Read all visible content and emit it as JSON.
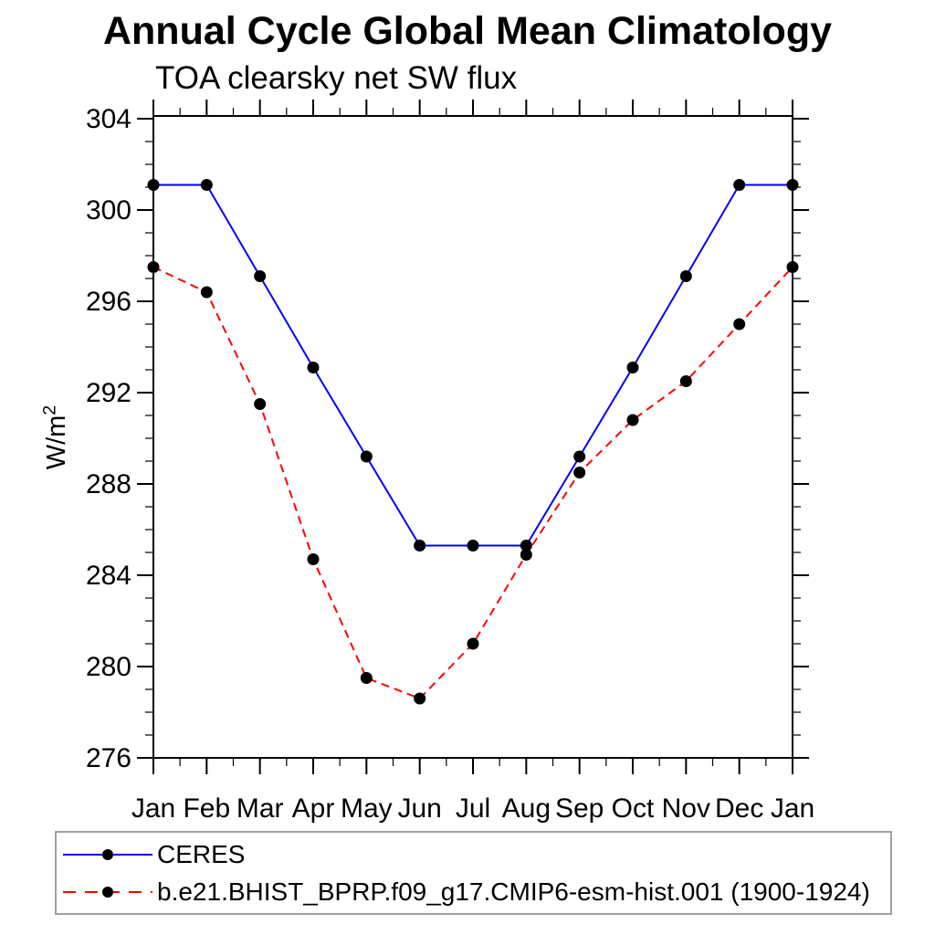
{
  "page": {
    "background": "#ffffff"
  },
  "chart_data": {
    "type": "line",
    "title": "Annual Cycle Global Mean Climatology",
    "subtitle": "TOA clearsky net SW flux",
    "ylabel_base": "W/m",
    "ylabel_exponent": "2",
    "categories": [
      "Jan",
      "Feb",
      "Mar",
      "Apr",
      "May",
      "Jun",
      "Jul",
      "Aug",
      "Sep",
      "Oct",
      "Nov",
      "Dec",
      "Jan"
    ],
    "ylim": [
      276,
      304
    ],
    "ytick_major": [
      276,
      280,
      284,
      288,
      292,
      296,
      300,
      304
    ],
    "ytick_minor_interval": 1,
    "grid": false,
    "axis_color": "#000000",
    "marker_shape": "filled-circle",
    "legend_position": "bottom-left",
    "series": [
      {
        "name": "CERES",
        "line_color": "#0000ff",
        "line_style": "solid",
        "marker_color": "#000000",
        "values": [
          301.1,
          301.1,
          297.1,
          293.1,
          289.2,
          285.3,
          285.3,
          285.3,
          289.2,
          293.1,
          297.1,
          301.1,
          301.1
        ]
      },
      {
        "name": "b.e21.BHIST_BPRP.f09_g17.CMIP6-esm-hist.001 (1900-1924)",
        "line_color": "#ff0000",
        "line_style": "dashed",
        "marker_color": "#000000",
        "values": [
          297.5,
          296.4,
          291.5,
          284.7,
          279.5,
          278.6,
          281.0,
          284.9,
          288.5,
          290.8,
          292.5,
          295.0,
          297.5
        ]
      }
    ]
  }
}
